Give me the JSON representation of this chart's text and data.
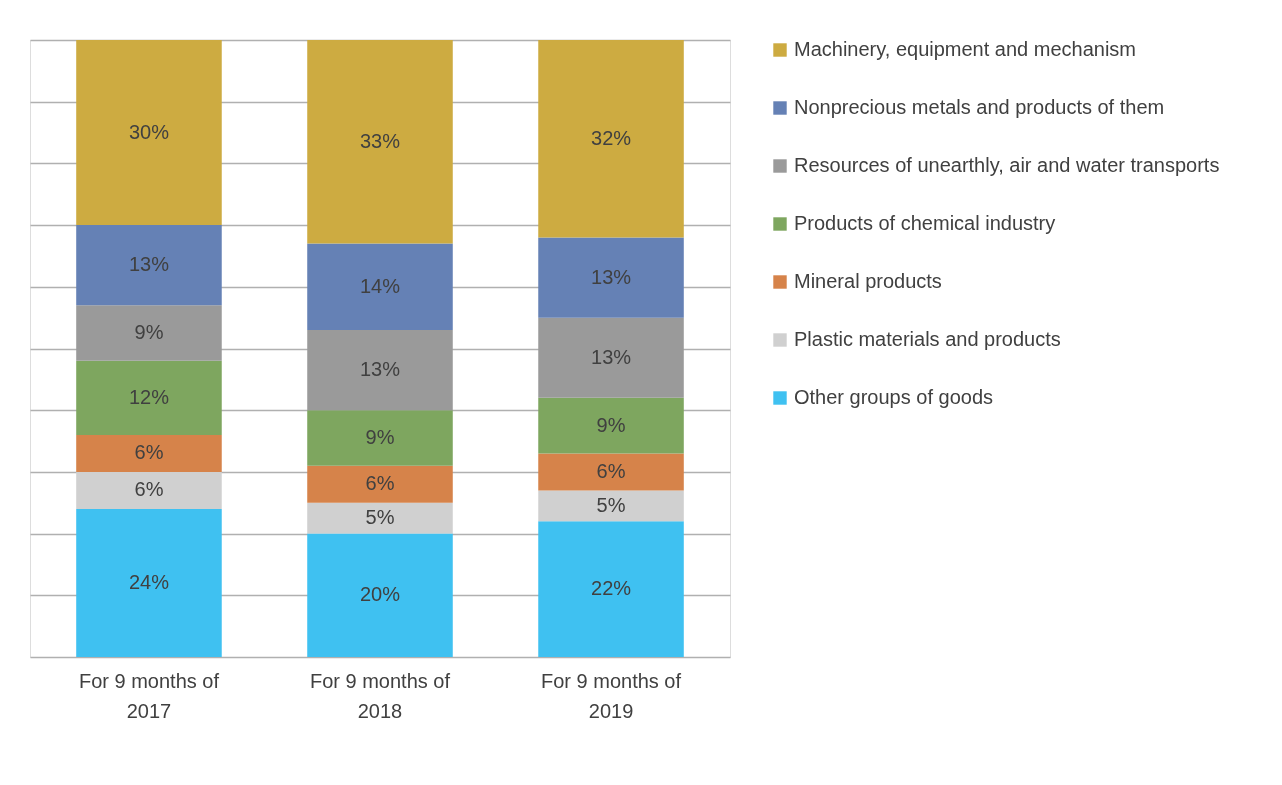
{
  "chart_data": {
    "type": "bar",
    "stacked": true,
    "categories": [
      "For 9 months of 2017",
      "For 9 months of 2018",
      "For 9 months of 2019"
    ],
    "series": [
      {
        "name": "Other groups of goods",
        "color": "#3fc1f1",
        "values": [
          24,
          20,
          22
        ],
        "value_labels": [
          "24%",
          "20%",
          "22%"
        ]
      },
      {
        "name": "Plastic materials and products",
        "color": "#d0d0d0",
        "values": [
          6,
          5,
          5
        ],
        "value_labels": [
          "6%",
          "5%",
          "5%"
        ]
      },
      {
        "name": "Mineral products",
        "color": "#d6834a",
        "values": [
          6,
          6,
          6
        ],
        "value_labels": [
          "6%",
          "6%",
          "6%"
        ]
      },
      {
        "name": "Products of chemical industry",
        "color": "#7ea65f",
        "values": [
          12,
          9,
          9
        ],
        "value_labels": [
          "12%",
          "9%",
          "9%"
        ]
      },
      {
        "name": "Resources of unearthly, air and water transports",
        "color": "#9a9a9a",
        "values": [
          9,
          13,
          13
        ],
        "value_labels": [
          "9%",
          "13%",
          "13%"
        ]
      },
      {
        "name": "Nonprecious metals and products of them",
        "color": "#6581b5",
        "values": [
          13,
          14,
          13
        ],
        "value_labels": [
          "13%",
          "14%",
          "13%"
        ]
      },
      {
        "name": "Machinery, equipment and mechanism",
        "color": "#cdab41",
        "values": [
          30,
          33,
          32
        ],
        "value_labels": [
          "30%",
          "33%",
          "32%"
        ]
      }
    ],
    "tick_labels": "x",
    "grid": "y",
    "legend": "right"
  }
}
